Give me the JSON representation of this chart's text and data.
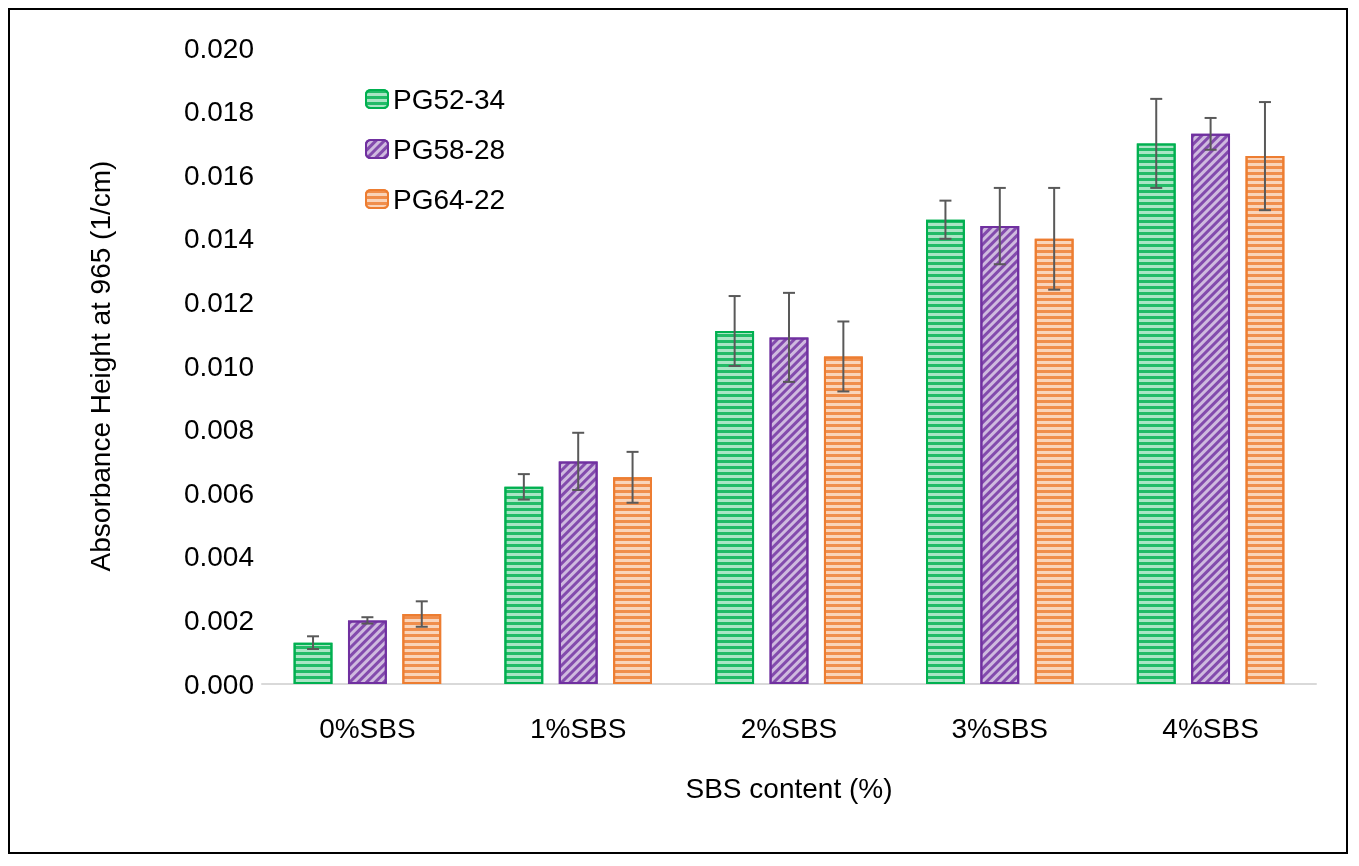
{
  "chart_data": {
    "type": "bar",
    "xlabel": "SBS content (%)",
    "ylabel": "Absorbance Height at 965 (1/cm)",
    "categories": [
      "0%SBS",
      "1%SBS",
      "2%SBS",
      "3%SBS",
      "4%SBS"
    ],
    "series": [
      {
        "name": "PG52-34",
        "color": "#00b050",
        "values": [
          0.0013,
          0.0062,
          0.0111,
          0.0146,
          0.017
        ],
        "errors": [
          0.0002,
          0.0004,
          0.0011,
          0.0006,
          0.0014
        ]
      },
      {
        "name": "PG58-28",
        "color": "#7030a0",
        "values": [
          0.002,
          0.007,
          0.0109,
          0.0144,
          0.0173
        ],
        "errors": [
          0.0001,
          0.0009,
          0.0014,
          0.0012,
          0.0005
        ]
      },
      {
        "name": "PG64-22",
        "color": "#ed7d31",
        "values": [
          0.0022,
          0.0065,
          0.0103,
          0.014,
          0.0166
        ],
        "errors": [
          0.0004,
          0.0008,
          0.0011,
          0.0016,
          0.0017
        ]
      }
    ],
    "ylim": [
      0,
      0.02
    ],
    "yticks": [
      {
        "value": 0,
        "label": "0.000"
      },
      {
        "value": 0.002,
        "label": "0.002"
      },
      {
        "value": 0.004,
        "label": "0.004"
      },
      {
        "value": 0.006,
        "label": "0.006"
      },
      {
        "value": 0.008,
        "label": "0.008"
      },
      {
        "value": 0.01,
        "label": "0.010"
      },
      {
        "value": 0.012,
        "label": "0.012"
      },
      {
        "value": 0.014,
        "label": "0.014"
      },
      {
        "value": 0.016,
        "label": "0.016"
      },
      {
        "value": 0.018,
        "label": "0.018"
      },
      {
        "value": 0.02,
        "label": "0.020"
      }
    ],
    "grid": false,
    "legend": "top left"
  }
}
